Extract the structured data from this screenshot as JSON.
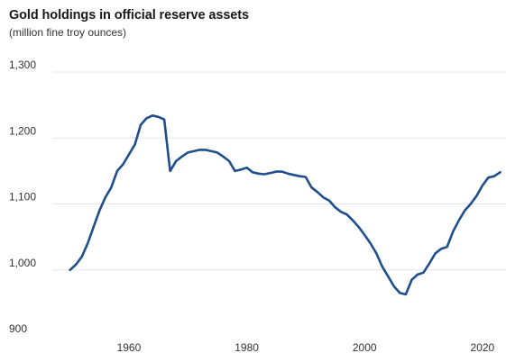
{
  "chart_data": {
    "type": "line",
    "title": "Gold holdings in official reserve assets",
    "subtitle": "(million fine troy ounces)",
    "xlabel": "",
    "ylabel": "",
    "xlim": [
      1947,
      2024
    ],
    "ylim": [
      900,
      1300
    ],
    "y_ticks": [
      900,
      1000,
      1100,
      1200,
      1300
    ],
    "y_tick_labels": [
      "900",
      "1,000",
      "1,100",
      "1,200",
      "1,300"
    ],
    "x_ticks": [
      1960,
      1980,
      2000,
      2020
    ],
    "x_tick_labels": [
      "1960",
      "1980",
      "2000",
      "2020"
    ],
    "grid": "horizontal",
    "colors": {
      "line": "#1f4e8c",
      "grid": "#e6e6e6"
    },
    "series": [
      {
        "x": [
          1950,
          1951,
          1952,
          1953,
          1954,
          1955,
          1956,
          1957,
          1958,
          1959,
          1960,
          1961,
          1962,
          1963,
          1964,
          1965,
          1966,
          1967,
          1968,
          1969,
          1970,
          1971,
          1972,
          1973,
          1974,
          1975,
          1976,
          1977,
          1978,
          1979,
          1980,
          1981,
          1982,
          1983,
          1984,
          1985,
          1986,
          1987,
          1988,
          1989,
          1990,
          1991,
          1992,
          1993,
          1994,
          1995,
          1996,
          1997,
          1998,
          1999,
          2000,
          2001,
          2002,
          2003,
          2004,
          2005,
          2006,
          2007,
          2008,
          2009,
          2010,
          2011,
          2012,
          2013,
          2014,
          2015,
          2016,
          2017,
          2018,
          2019,
          2020,
          2021,
          2022,
          2023
        ],
        "y": [
          1000,
          1008,
          1020,
          1040,
          1065,
          1090,
          1110,
          1125,
          1150,
          1160,
          1175,
          1190,
          1220,
          1230,
          1234,
          1232,
          1228,
          1150,
          1165,
          1172,
          1178,
          1180,
          1182,
          1182,
          1180,
          1178,
          1172,
          1165,
          1150,
          1152,
          1155,
          1148,
          1146,
          1145,
          1147,
          1149,
          1149,
          1146,
          1144,
          1142,
          1141,
          1125,
          1118,
          1110,
          1105,
          1095,
          1088,
          1084,
          1075,
          1065,
          1053,
          1040,
          1025,
          1005,
          990,
          975,
          965,
          963,
          985,
          993,
          996,
          1010,
          1025,
          1032,
          1035,
          1058,
          1075,
          1090,
          1100,
          1112,
          1128,
          1140,
          1142,
          1148
        ]
      }
    ]
  }
}
